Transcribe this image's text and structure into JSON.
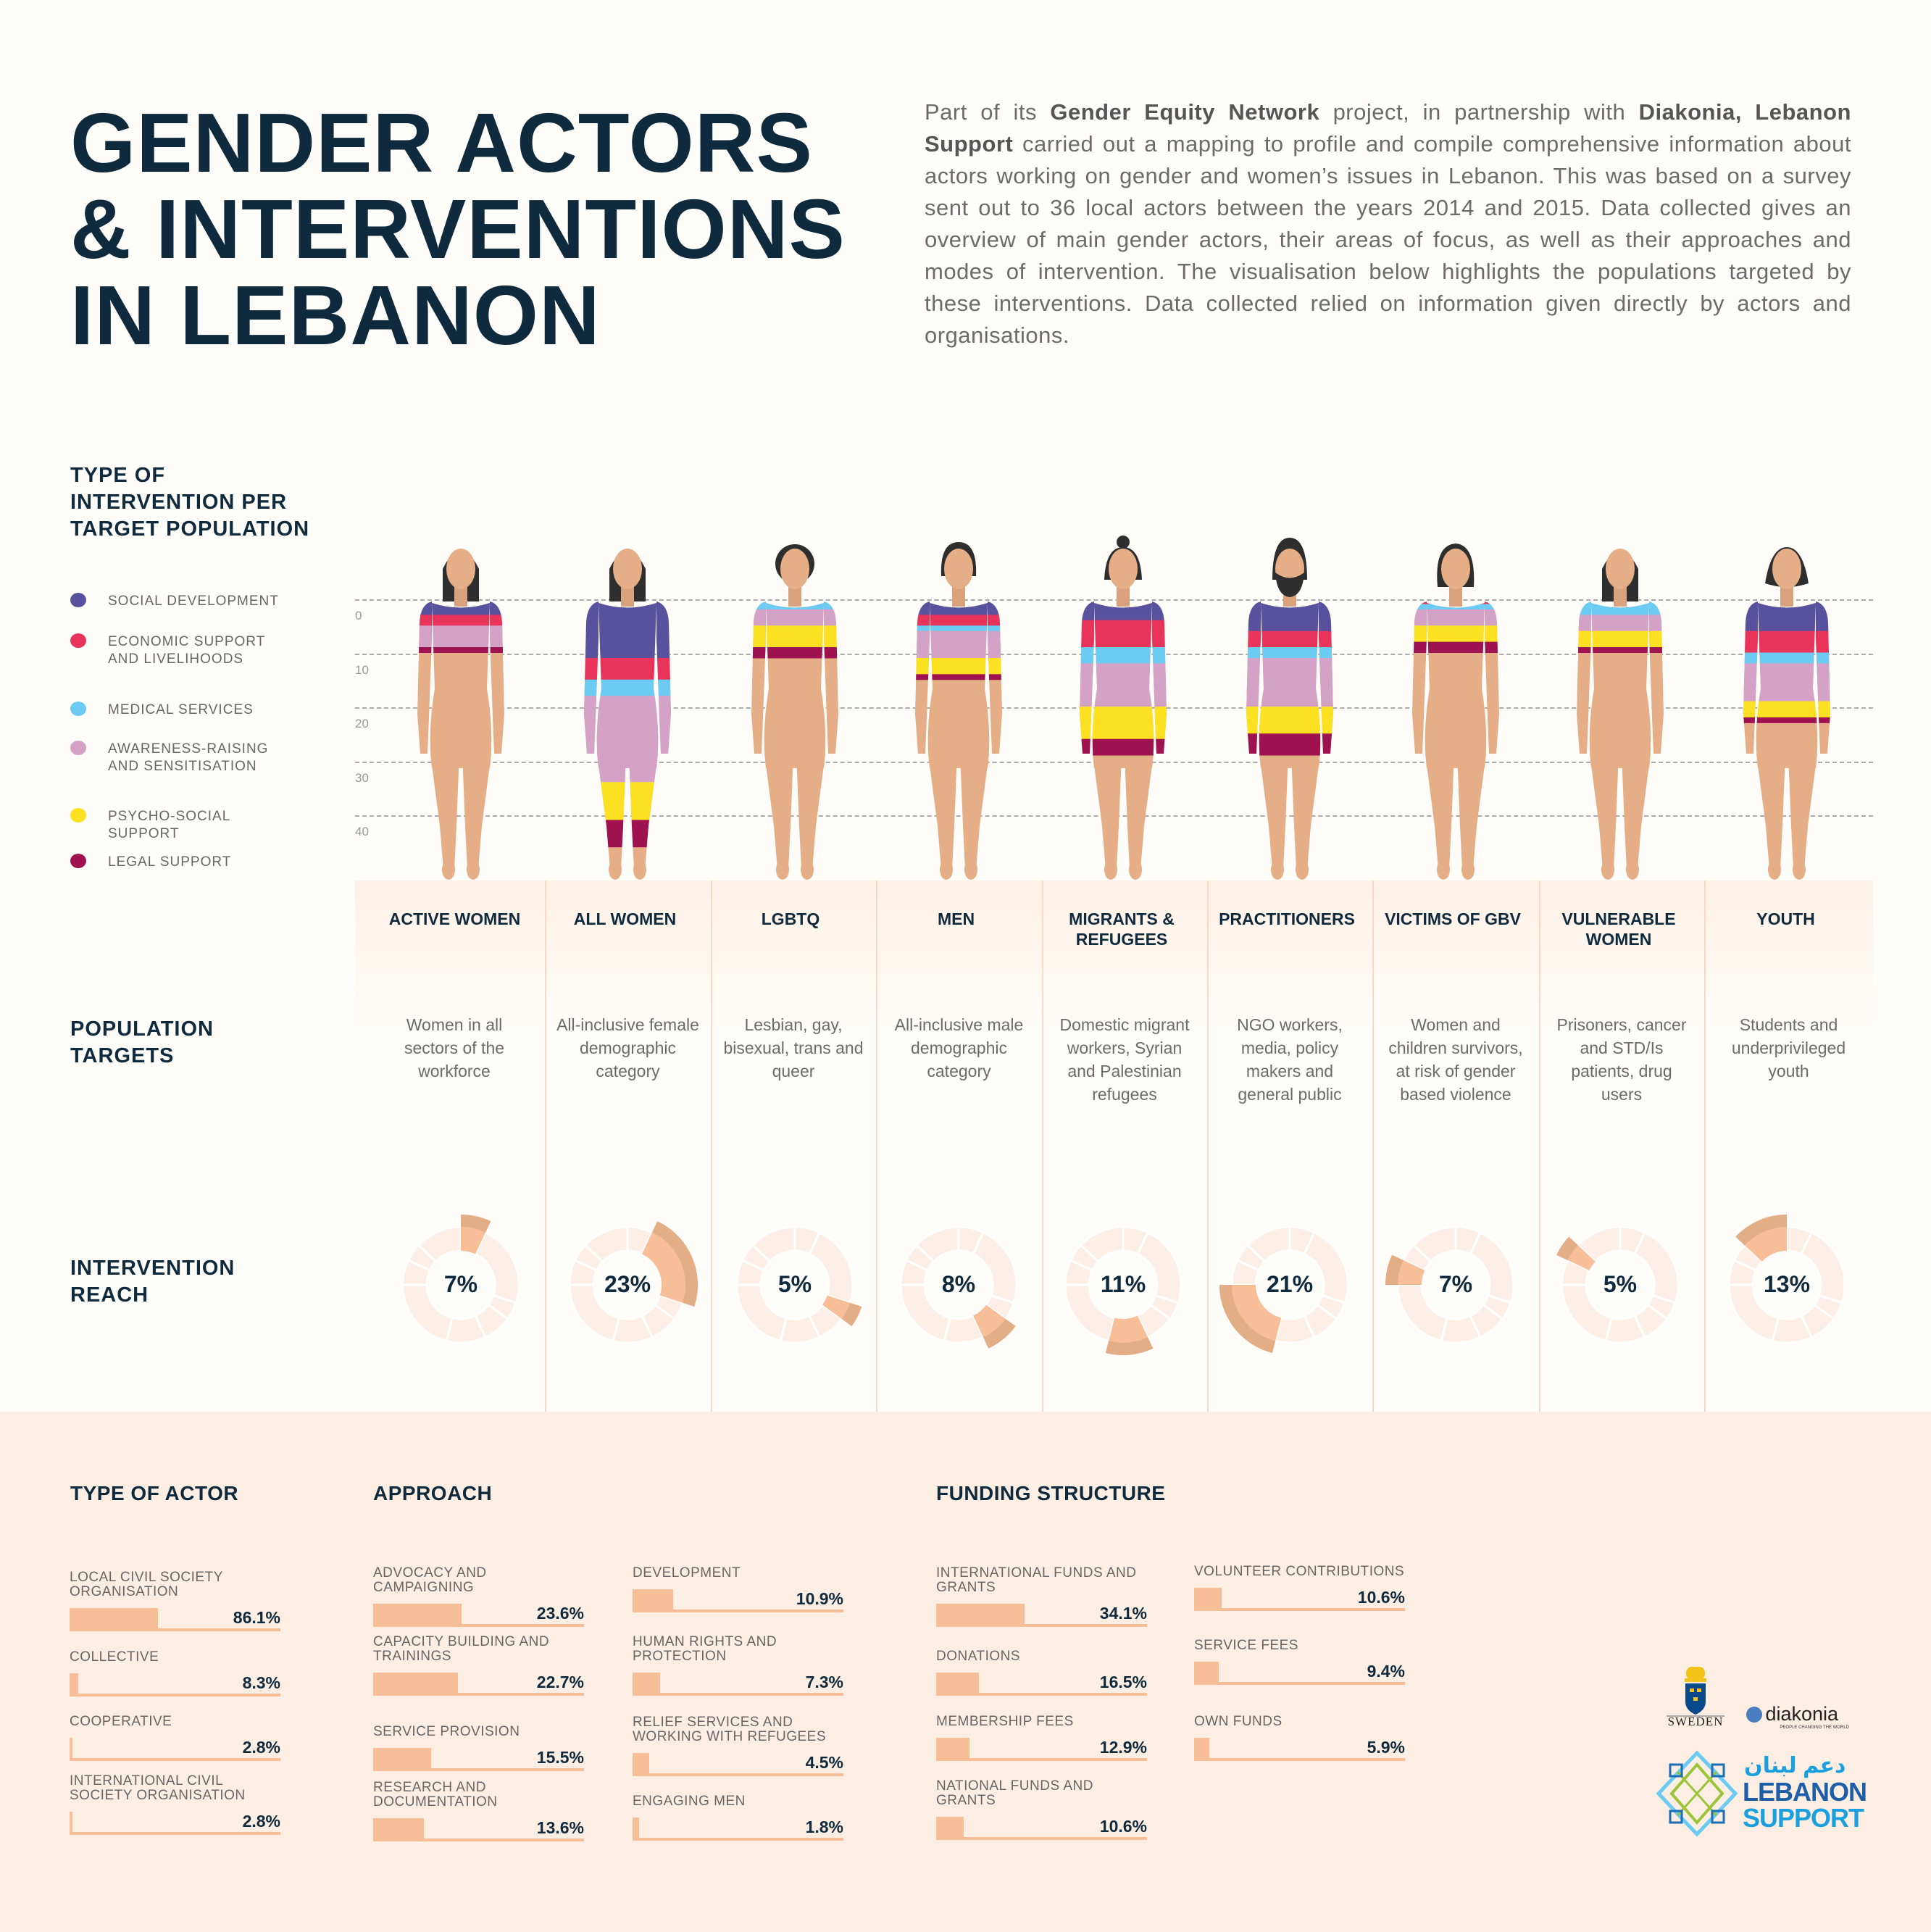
{
  "header": {
    "title_lines": [
      "GENDER ACTORS",
      "& INTERVENTIONS",
      "IN LEBANON"
    ],
    "intro": [
      {
        "text": "Part of its ",
        "bold": false
      },
      {
        "text": "Gender Equity Network",
        "bold": true
      },
      {
        "text": " project, in partnership with ",
        "bold": false
      },
      {
        "text": "Diakonia, Lebanon Support",
        "bold": true
      },
      {
        "text": " carried out a mapping to profile and compile comprehensive information about actors working on gender and women’s issues in Lebanon. This was based on a survey sent out to 36 local actors between the years 2014 and 2015. Data collected gives an overview of main gender actors, their areas of focus, as well as their approaches and modes of intervention. The visualisation below highlights the populations targeted by these interventions. Data collected relied on information given directly by actors and organisations.",
        "bold": false
      }
    ]
  },
  "sections": {
    "intervention_type": "TYPE OF INTERVENTION PER TARGET POPULATION",
    "population_targets": "POPULATION TARGETS",
    "intervention_reach": "INTERVENTION REACH"
  },
  "legend": [
    {
      "label": "SOCIAL DEVELOPMENT",
      "color": "#58519e"
    },
    {
      "label": "ECONOMIC SUPPORT AND LIVELIHOODS",
      "color": "#e8345a"
    },
    {
      "label": "MEDICAL SERVICES",
      "color": "#6ccbf3"
    },
    {
      "label": "AWARENESS-RAISING AND SENSITISATION",
      "color": "#d5a2c7"
    },
    {
      "label": "PSYCHO-SOCIAL SUPPORT",
      "color": "#fbe122"
    },
    {
      "label": "LEGAL SUPPORT",
      "color": "#9e124f"
    }
  ],
  "populations": [
    {
      "name": "ACTIVE WOMEN",
      "desc": "Women in all sectors of the workforce",
      "hair": "long",
      "reach": "7%"
    },
    {
      "name": "ALL WOMEN",
      "desc": "All-inclusive female demographic category",
      "hair": "long",
      "reach": "23%"
    },
    {
      "name": "LGBTQ",
      "desc": "Lesbian, gay, bisexual, trans and queer",
      "hair": "curly",
      "reach": "5%"
    },
    {
      "name": "MEN",
      "desc": "All-inclusive male demographic category",
      "hair": "short",
      "reach": "8%"
    },
    {
      "name": "MIGRANTS & REFUGEES",
      "desc": "Domestic migrant workers, Syrian and Palestinian refugees",
      "hair": "bun",
      "reach": "11%"
    },
    {
      "name": "PRACTITIONERS",
      "desc": "NGO workers, media, policy makers and general public",
      "hair": "beard",
      "reach": "21%"
    },
    {
      "name": "VICTIMS OF GBV",
      "desc": "Women and children survivors, at risk of gender based violence",
      "hair": "side",
      "reach": "7%"
    },
    {
      "name": "VULNERABLE WOMEN",
      "desc": "Prisoners, cancer and STD/Is patients, drug users",
      "hair": "long",
      "reach": "5%"
    },
    {
      "name": "YOUTH",
      "desc": "Students and underprivileged youth",
      "hair": "bob",
      "reach": "13%"
    }
  ],
  "chart_data": [
    {
      "type": "bar",
      "stacked": true,
      "title": "TYPE OF INTERVENTION PER TARGET POPULATION",
      "categories": [
        "ACTIVE WOMEN",
        "ALL WOMEN",
        "LGBTQ",
        "MEN",
        "MIGRANTS & REFUGEES",
        "PRACTITIONERS",
        "VICTIMS OF GBV",
        "VULNERABLE WOMEN",
        "YOUTH"
      ],
      "y_ticks": [
        "0",
        "10",
        "20",
        "30",
        "40"
      ],
      "ylim": [
        0,
        47
      ],
      "series": [
        {
          "name": "SOCIAL DEVELOPMENT",
          "values": [
            3,
            11,
            0,
            3,
            4,
            6,
            0,
            0,
            6
          ]
        },
        {
          "name": "ECONOMIC SUPPORT AND LIVELIHOODS",
          "values": [
            2,
            4,
            0,
            2,
            5,
            3,
            1,
            0,
            4
          ]
        },
        {
          "name": "MEDICAL SERVICES",
          "values": [
            0,
            3,
            2,
            1,
            3,
            2,
            1,
            3,
            2
          ]
        },
        {
          "name": "AWARENESS-RAISING AND SENSITISATION",
          "values": [
            4,
            16,
            3,
            5,
            8,
            9,
            3,
            3,
            7
          ]
        },
        {
          "name": "PSYCHO-SOCIAL SUPPORT",
          "values": [
            0,
            7,
            4,
            3,
            6,
            5,
            3,
            3,
            3
          ]
        },
        {
          "name": "LEGAL SUPPORT",
          "values": [
            1,
            5,
            2,
            1,
            3,
            4,
            2,
            1,
            1
          ]
        }
      ],
      "grid": true
    },
    {
      "type": "pie",
      "title": "INTERVENTION REACH",
      "categories": [
        "ACTIVE WOMEN",
        "ALL WOMEN",
        "LGBTQ",
        "MEN",
        "MIGRANTS & REFUGEES",
        "PRACTITIONERS",
        "VICTIMS OF GBV",
        "VULNERABLE WOMEN",
        "YOUTH"
      ],
      "values": [
        7,
        23,
        5,
        8,
        11,
        21,
        7,
        5,
        13
      ]
    }
  ],
  "bottom": {
    "actor": {
      "title": "TYPE OF ACTOR",
      "items": [
        {
          "label": "LOCAL CIVIL SOCIETY ORGANISATION",
          "value": 86.1,
          "text": "86.1%"
        },
        {
          "label": "COLLECTIVE",
          "value": 8.3,
          "text": "8.3%"
        },
        {
          "label": "COOPERATIVE",
          "value": 2.8,
          "text": "2.8%"
        },
        {
          "label": "INTERNATIONAL CIVIL SOCIETY ORGANISATION",
          "value": 2.8,
          "text": "2.8%"
        }
      ]
    },
    "approach": {
      "title": "APPROACH",
      "items": [
        {
          "label": "ADVOCACY AND CAMPAIGNING",
          "value": 23.6,
          "text": "23.6%"
        },
        {
          "label": "CAPACITY BUILDING AND TRAININGS",
          "value": 22.7,
          "text": "22.7%"
        },
        {
          "label": "SERVICE PROVISION",
          "value": 15.5,
          "text": "15.5%"
        },
        {
          "label": "RESEARCH AND DOCUMENTATION",
          "value": 13.6,
          "text": "13.6%"
        },
        {
          "label": "DEVELOPMENT",
          "value": 10.9,
          "text": "10.9%"
        },
        {
          "label": "HUMAN RIGHTS AND PROTECTION",
          "value": 7.3,
          "text": "7.3%"
        },
        {
          "label": "RELIEF SERVICES AND WORKING WITH REFUGEES",
          "value": 4.5,
          "text": "4.5%"
        },
        {
          "label": "ENGAGING MEN",
          "value": 1.8,
          "text": "1.8%"
        }
      ]
    },
    "funding": {
      "title": "FUNDING STRUCTURE",
      "items": [
        {
          "label": "INTERNATIONAL FUNDS AND GRANTS",
          "value": 34.1,
          "text": "34.1%"
        },
        {
          "label": "DONATIONS",
          "value": 16.5,
          "text": "16.5%"
        },
        {
          "label": "MEMBERSHIP FEES",
          "value": 12.9,
          "text": "12.9%"
        },
        {
          "label": "NATIONAL FUNDS AND GRANTS",
          "value": 10.6,
          "text": "10.6%"
        },
        {
          "label": "VOLUNTEER CONTRIBUTIONS",
          "value": 10.6,
          "text": "10.6%"
        },
        {
          "label": "SERVICE FEES",
          "value": 9.4,
          "text": "9.4%"
        },
        {
          "label": "OWN FUNDS",
          "value": 5.9,
          "text": "5.9%"
        }
      ]
    }
  },
  "logos": {
    "sweden": "SWEDEN",
    "diakonia": "diakonia",
    "diakonia_tagline": "PEOPLE CHANGING THE WORLD",
    "ls_arabic": "دعم لبنان",
    "ls_line1": "LEBANON",
    "ls_line2": "SUPPORT"
  },
  "colors": {
    "title": "#0f2a3c",
    "skin": "#e5ae86",
    "hair": "#2e2e2e",
    "reach": "#f7be97",
    "reach_dark": "#e3ad86",
    "ring": "#fdeee6"
  }
}
